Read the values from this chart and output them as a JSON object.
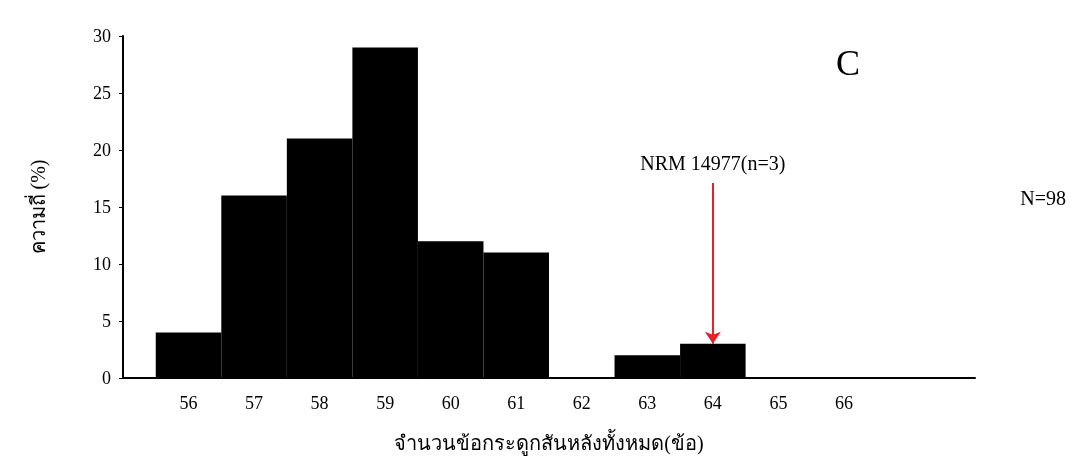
{
  "chart_data": {
    "type": "histogram",
    "xlabel": "จำนวนข้อกระดูกสันหลังทั้งหมด(ข้อ)",
    "ylabel": "ความถี่ (%)",
    "bins": [
      55.5,
      56.5,
      57.5,
      58.5,
      59.5,
      60.5,
      61.5,
      62.5,
      63.5,
      64.5,
      65.5,
      66.5
    ],
    "values": [
      4,
      16,
      21,
      29,
      12,
      11,
      0,
      2,
      3,
      0,
      0
    ],
    "color": "#000000",
    "xlim": [
      55,
      68
    ],
    "xticks": [
      56,
      57,
      58,
      59,
      60,
      61,
      62,
      63,
      64,
      65,
      66
    ],
    "ylim": [
      0,
      30
    ],
    "yticks": [
      0,
      5,
      10,
      15,
      20,
      25,
      30
    ],
    "grid": false,
    "annotations": [
      "C",
      {
        "text": "NRM 14977(n=3)",
        "x": 64,
        "y": 3
      },
      "N=98"
    ]
  }
}
